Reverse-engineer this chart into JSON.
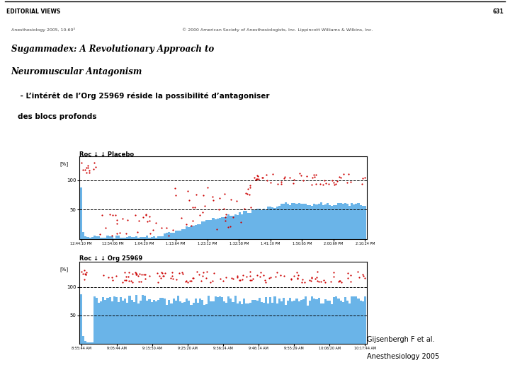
{
  "bg_color": "#ffffff",
  "header_text": "EDITORIAL VIEWS",
  "header_page": "631",
  "journal_ref": "Anesthesiology 2005, 10-60³",
  "copyright": "© 2000 American Society of Anesthesiologists, Inc. Lippincott Williams & Wilkins, Inc.",
  "title_line1": "Sugammadex: A Revolutionary Approach to",
  "title_line2": "Neuromuscular Antagonism",
  "bullet_line1": " - L’intérêt de l’Org 25969 réside la possibilité d’antagoniser",
  "bullet_line2": "des blocs profonds",
  "chart1_title": "Roc ↓ ↓ Placebo",
  "chart1_ylabel": "[%]",
  "chart2_title": "Roc ↓ ↓ Org 25969",
  "chart2_ylabel": "[%]",
  "bar_color": "#6ab4e8",
  "dot_color": "#cc0000",
  "caption_line1": "Gijsenbergh F et al.",
  "caption_line2": "Anesthesiology 2005",
  "time_labels1": [
    "12:44:10 PM",
    "12:54:06 PM",
    "1:04:20 PM",
    "1:13:64 PM",
    "1:23:12 PM",
    "1:32:58 PM",
    "1:41:10 PM",
    "1:50:65 PM",
    "2:00:69 PM",
    "2:10:24 PM"
  ],
  "time_labels2": [
    "8:55:44 AM",
    "9:05:44 AM",
    "9:15:50 AM",
    "9:25:20 AM",
    "9:36:14 AM",
    "9:46:14 AM",
    "9:55:29 AM",
    "10:06:20 AM",
    "10:17:44 AM"
  ]
}
